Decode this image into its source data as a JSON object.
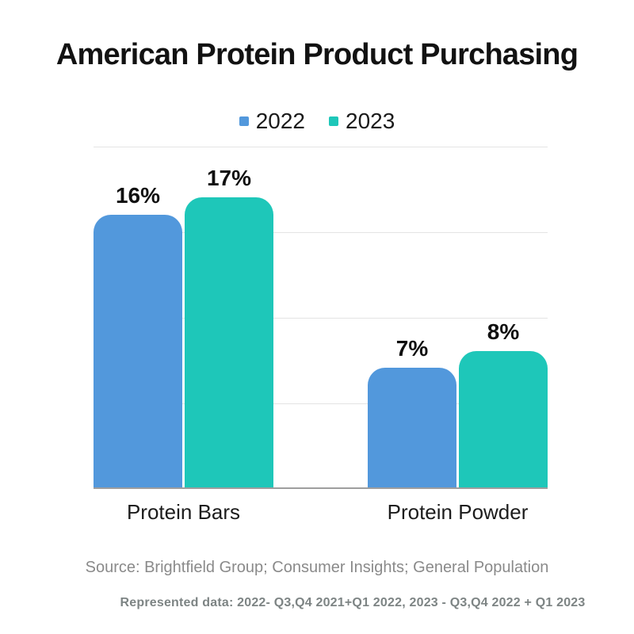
{
  "title": "American Protein Product Purchasing",
  "source_note": "Source: Brightfield Group; Consumer Insights; General Population",
  "represented_note": "Represented data: 2022- Q3,Q4 2021+Q1 2022, 2023 - Q3,Q4 2022 + Q1 2023",
  "colors": {
    "background": "#FFFFFF",
    "series_2022": "#5298DC",
    "series_2023": "#1EC7B9",
    "gridline": "#E4E4E4",
    "baseline": "#9E9E9E",
    "title_text": "#121212",
    "data_label_text": "#0F0F0F",
    "source_text": "#8A8A8A",
    "represented_text": "#7D8484"
  },
  "chart_data": {
    "type": "bar",
    "title": "American Protein Product Purchasing",
    "categories": [
      "Protein Bars",
      "Protein Powder"
    ],
    "series": [
      {
        "name": "2022",
        "color": "#5298DC",
        "values": [
          16,
          7
        ]
      },
      {
        "name": "2023",
        "color": "#1EC7B9",
        "values": [
          17,
          8
        ]
      }
    ],
    "value_suffix": "%",
    "ylim": [
      0,
      20
    ],
    "gridline_values": [
      0,
      5,
      10,
      15,
      20
    ],
    "grid": true,
    "y_axis_labels_shown": false,
    "legend_position": "top",
    "data_labels": true
  }
}
